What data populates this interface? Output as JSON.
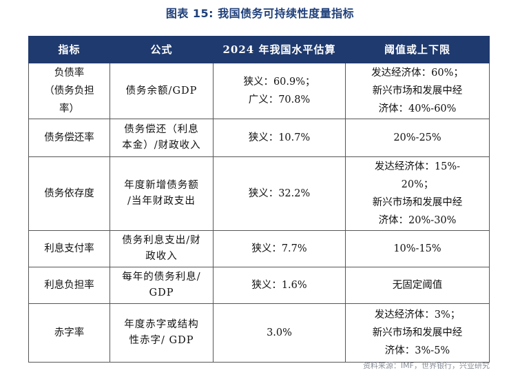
{
  "title": "图表 15: 我国债务可持续性度量指标",
  "columns": [
    "指标",
    "公式",
    "2024 年我国水平估算",
    "阈值或上下限"
  ],
  "rows": [
    {
      "indicator": [
        "负债率",
        "（债务负担",
        "率）"
      ],
      "formula": [
        "债务余额/GDP"
      ],
      "estimate": [
        "狭义：60.9%；",
        "广义：70.8%"
      ],
      "threshold": [
        "发达经济体：60%；",
        "新兴市场和发展中经",
        "济体：40%-60%"
      ]
    },
    {
      "indicator": [
        "债务偿还率"
      ],
      "formula": [
        "债务偿还（利息",
        "本金）/财政收入"
      ],
      "estimate": [
        "狭义：10.7%"
      ],
      "threshold": [
        "20%-25%"
      ]
    },
    {
      "indicator": [
        "债务依存度"
      ],
      "formula": [
        "年度新增债务额",
        "/当年财政支出"
      ],
      "estimate": [
        "狭义：32.2%"
      ],
      "threshold": [
        "发达经济体：15%-",
        "20%；",
        "新兴市场和发展中经",
        "济体：20%-30%"
      ]
    },
    {
      "indicator": [
        "利息支付率"
      ],
      "formula": [
        "债务利息支出/财",
        "政收入"
      ],
      "estimate": [
        "狭义：7.7%"
      ],
      "threshold": [
        "10%-15%"
      ]
    },
    {
      "indicator": [
        "利息负担率"
      ],
      "formula": [
        "每年的债务利息/",
        "GDP"
      ],
      "estimate": [
        "狭义：1.6%"
      ],
      "threshold": [
        "无固定阈值"
      ]
    },
    {
      "indicator": [
        "赤字率"
      ],
      "formula": [
        "年度赤字或结构",
        "性赤字/ GDP"
      ],
      "estimate": [
        "3.0%"
      ],
      "threshold": [
        "发达经济体：3%；",
        "新兴市场和发展中经",
        "济体：3%-5%"
      ]
    }
  ],
  "source": "资料来源：IMF，世界银行，兴业研究"
}
